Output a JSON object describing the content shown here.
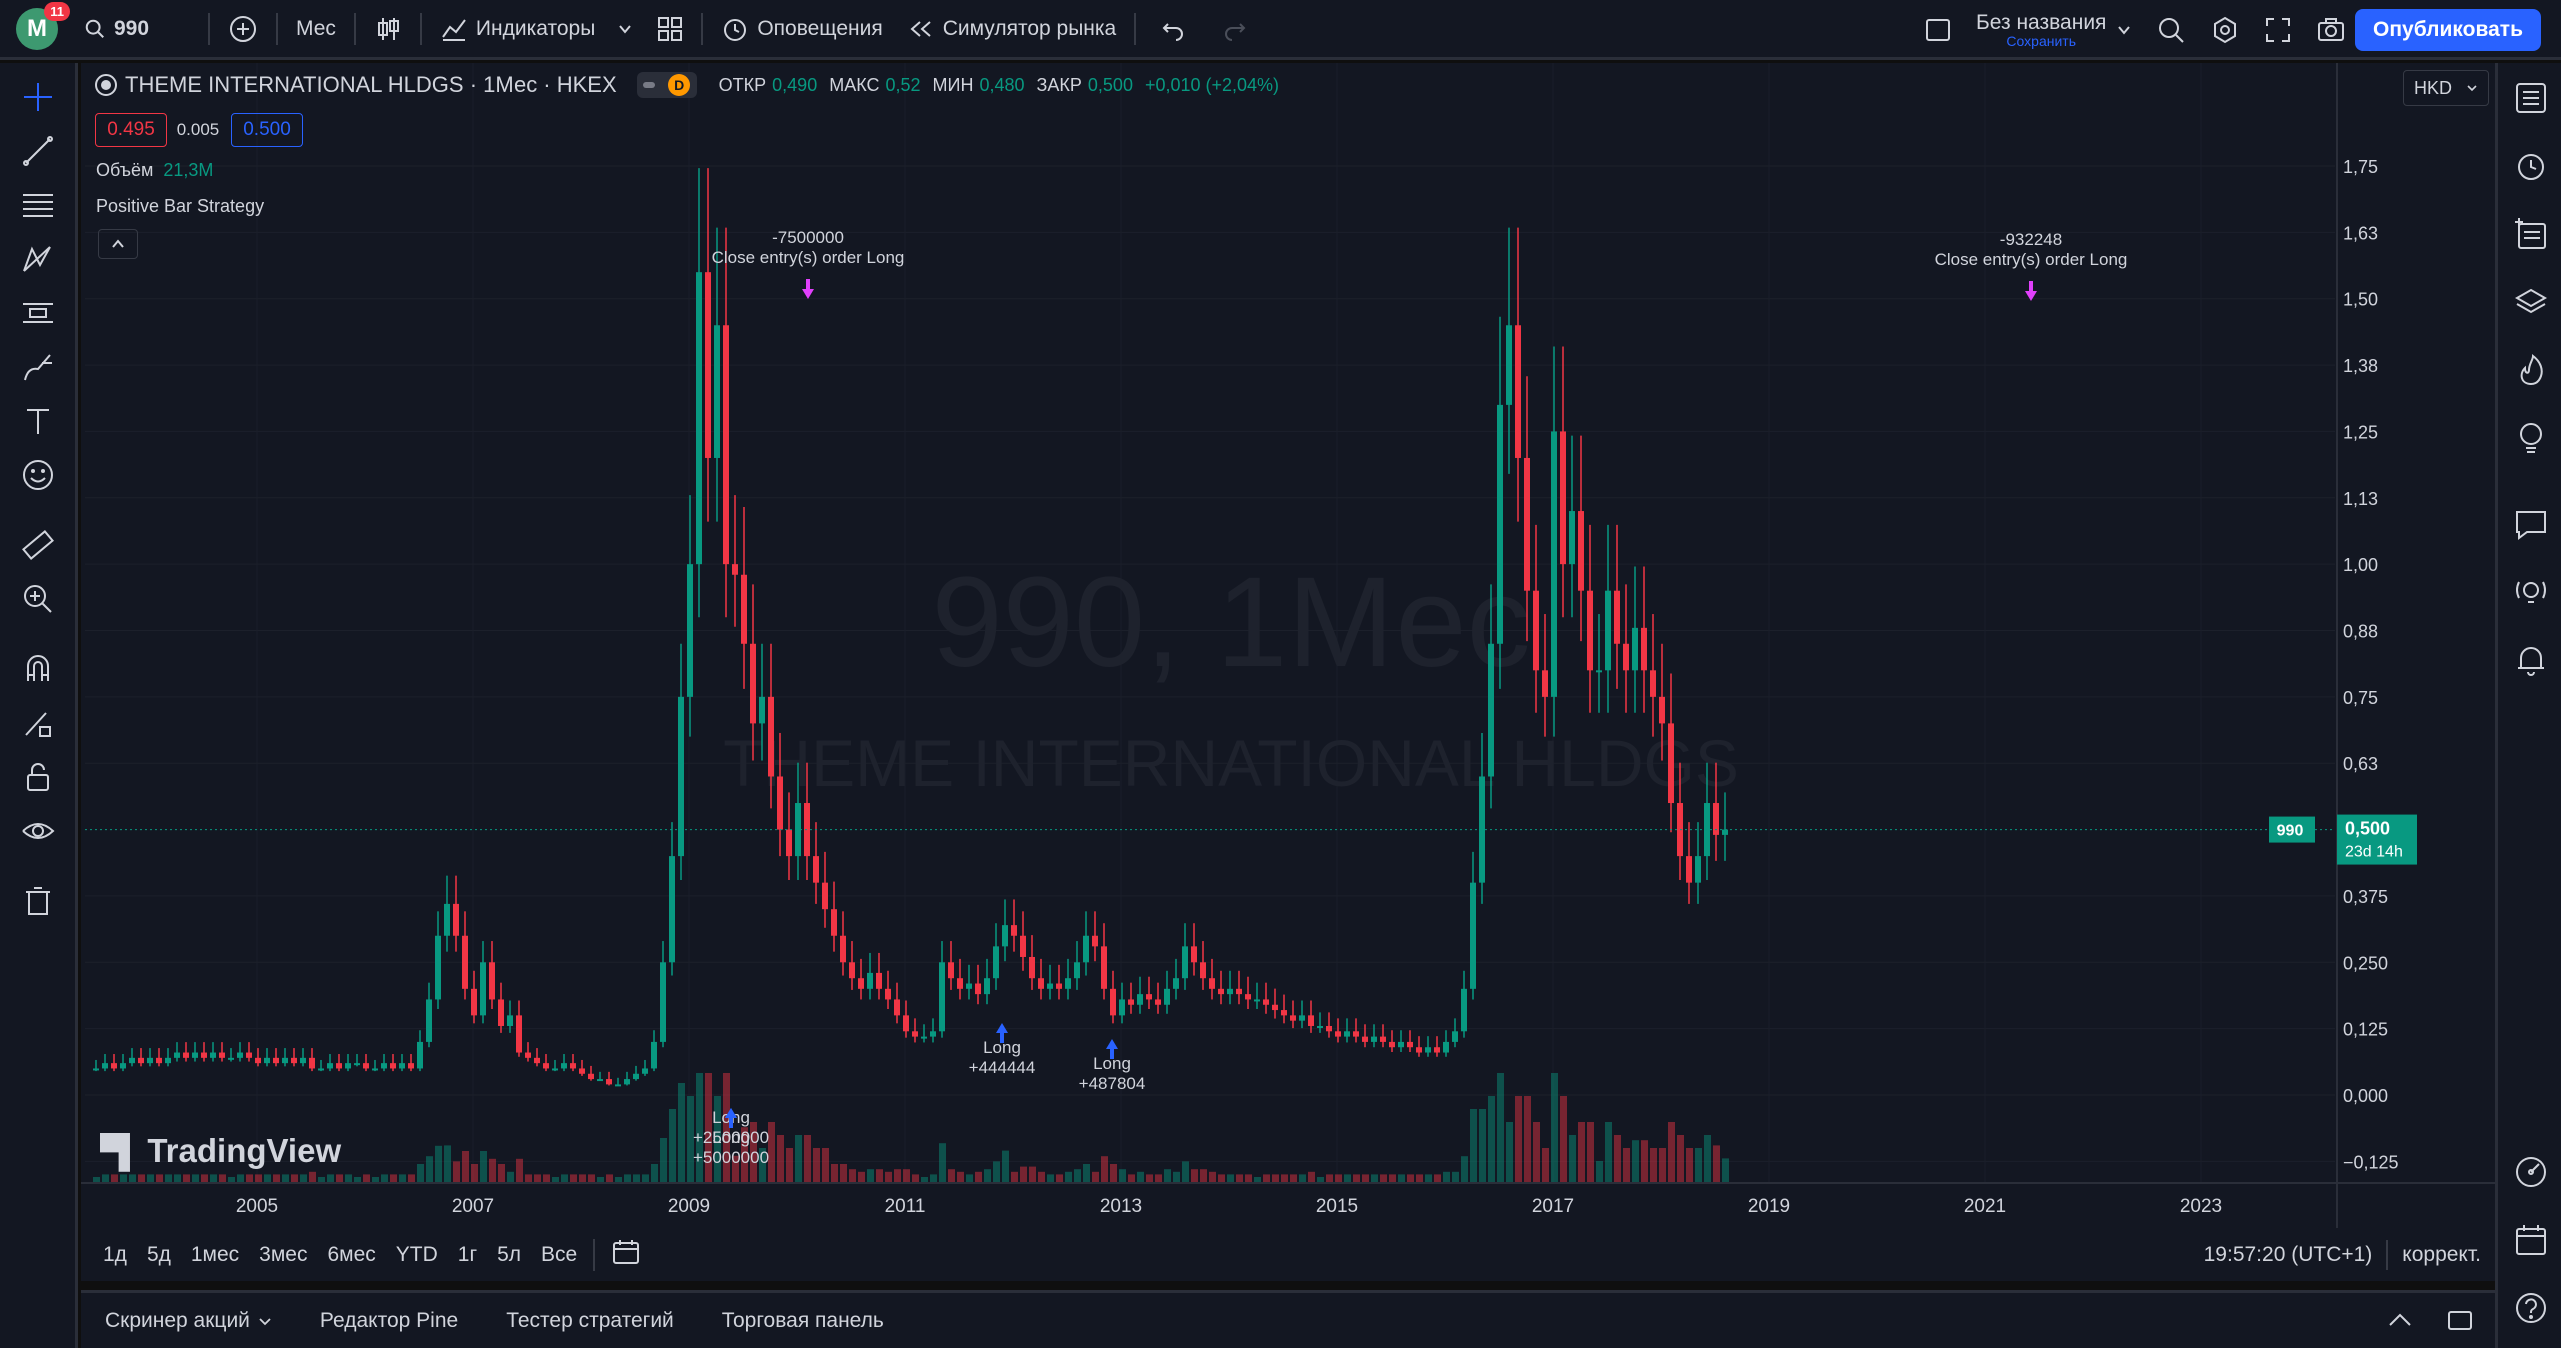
{
  "topbar": {
    "logo_letter": "M",
    "notifications": "11",
    "symbol": "990",
    "interval": "Мес",
    "indicators": "Индикаторы",
    "alerts": "Оповещения",
    "replay": "Симулятор рынка",
    "layout_name": "Без названия",
    "layout_save": "Сохранить",
    "publish": "Опубликовать"
  },
  "legend": {
    "title": "THEME INTERNATIONAL HLDGS · 1Мес · HKEX",
    "d_badge": "D",
    "open_label": "ОТКР",
    "open": "0,490",
    "high_label": "МАКС",
    "high": "0,52",
    "low_label": "МИН",
    "low": "0,480",
    "close_label": "ЗАКР",
    "close": "0,500",
    "change": "+0,010 (+2,04%)",
    "bid": "0.495",
    "spread": "0.005",
    "ask": "0.500",
    "volume_label": "Объём",
    "volume_value": "21,3M",
    "strategy": "Positive Bar Strategy",
    "currency": "HKD"
  },
  "watermark": {
    "line1": "990, 1Мес",
    "line2": "THEME INTERNATIONAL HLDGS"
  },
  "chart_data": {
    "type": "candlestick",
    "price_axis_ticks": [
      "1,75",
      "1,63",
      "1,50",
      "1,38",
      "1,25",
      "1,13",
      "1,00",
      "0,88",
      "0,75",
      "0,63",
      "0,375",
      "0,250",
      "0,125",
      "0,000",
      "−0,125"
    ],
    "price_axis_values": [
      1.75,
      1.625,
      1.5,
      1.375,
      1.25,
      1.125,
      1.0,
      0.875,
      0.75,
      0.625,
      0.375,
      0.25,
      0.125,
      0.0,
      -0.125
    ],
    "time_axis_labels": [
      "2005",
      "2007",
      "2009",
      "2011",
      "2013",
      "2015",
      "2017",
      "2019",
      "2021",
      "2023"
    ],
    "last_price": "0,500",
    "last_price_symbol": "990",
    "countdown": "23d 14h",
    "series_close_monthly_approx": [
      0.05,
      0.06,
      0.05,
      0.06,
      0.07,
      0.06,
      0.07,
      0.06,
      0.07,
      0.08,
      0.07,
      0.08,
      0.07,
      0.08,
      0.07,
      0.07,
      0.08,
      0.07,
      0.06,
      0.07,
      0.06,
      0.07,
      0.06,
      0.07,
      0.05,
      0.05,
      0.06,
      0.05,
      0.06,
      0.06,
      0.05,
      0.05,
      0.06,
      0.05,
      0.06,
      0.05,
      0.1,
      0.18,
      0.3,
      0.36,
      0.3,
      0.2,
      0.15,
      0.25,
      0.18,
      0.13,
      0.15,
      0.08,
      0.07,
      0.06,
      0.05,
      0.05,
      0.06,
      0.05,
      0.04,
      0.03,
      0.03,
      0.02,
      0.02,
      0.03,
      0.04,
      0.05,
      0.1,
      0.25,
      0.45,
      0.75,
      1.0,
      1.55,
      1.2,
      1.45,
      1.0,
      0.98,
      0.85,
      0.7,
      0.75,
      0.6,
      0.5,
      0.45,
      0.55,
      0.45,
      0.4,
      0.35,
      0.3,
      0.25,
      0.22,
      0.2,
      0.23,
      0.2,
      0.18,
      0.15,
      0.12,
      0.11,
      0.11,
      0.12,
      0.25,
      0.22,
      0.2,
      0.21,
      0.19,
      0.22,
      0.28,
      0.32,
      0.3,
      0.26,
      0.22,
      0.2,
      0.21,
      0.2,
      0.22,
      0.25,
      0.3,
      0.28,
      0.2,
      0.15,
      0.18,
      0.17,
      0.19,
      0.18,
      0.17,
      0.2,
      0.22,
      0.28,
      0.25,
      0.22,
      0.2,
      0.19,
      0.2,
      0.19,
      0.18,
      0.18,
      0.17,
      0.16,
      0.15,
      0.14,
      0.15,
      0.13,
      0.13,
      0.12,
      0.11,
      0.12,
      0.11,
      0.1,
      0.11,
      0.1,
      0.09,
      0.1,
      0.09,
      0.08,
      0.09,
      0.08,
      0.1,
      0.12,
      0.2,
      0.4,
      0.6,
      0.85,
      1.3,
      1.45,
      1.2,
      0.95,
      0.8,
      0.75,
      1.25,
      1.0,
      1.1,
      0.95,
      0.8,
      0.8,
      0.95,
      0.85,
      0.8,
      0.88,
      0.8,
      0.75,
      0.7,
      0.55,
      0.45,
      0.4,
      0.45,
      0.55,
      0.49,
      0.5
    ],
    "trades": [
      {
        "label": "Long",
        "amount": "+2500000"
      },
      {
        "label": "Long",
        "amount": "+5000000"
      },
      {
        "label": "-7500000",
        "amount": "Close entry(s) order Long"
      },
      {
        "label": "Long",
        "amount": "+444444"
      },
      {
        "label": "Long",
        "amount": "+487804"
      },
      {
        "label": "-932248",
        "amount": "Close entry(s) order Long"
      }
    ]
  },
  "rangebar": {
    "ranges": [
      "1д",
      "5д",
      "1мес",
      "3мес",
      "6мес",
      "YTD",
      "1г",
      "5л",
      "Все"
    ],
    "clock": "19:57:20 (UTC+1)",
    "adjust": "коррект."
  },
  "bottom_panel": {
    "tabs": [
      "Скринер акций",
      "Редактор Pine",
      "Тестер стратегий",
      "Торговая панель"
    ]
  },
  "branding": {
    "tradingview": "TradingView"
  },
  "colors": {
    "up": "#089981",
    "down": "#f23645",
    "bg": "#131722",
    "accent": "#2962ff"
  }
}
